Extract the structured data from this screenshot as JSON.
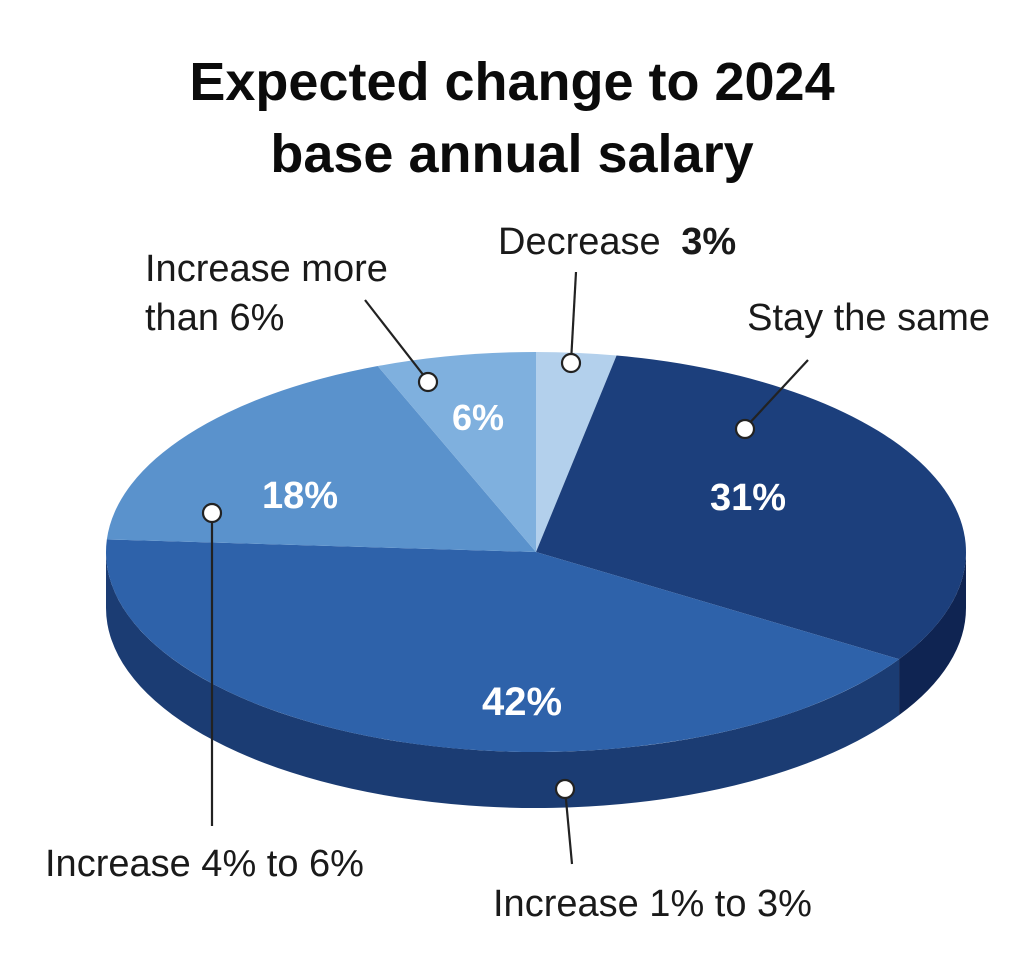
{
  "chart_data": {
    "type": "pie",
    "title_lines": [
      "Expected change to 2024",
      "base annual salary"
    ],
    "slices": [
      {
        "label": "Decrease",
        "value": 3,
        "display": "3%",
        "color": "#b3d0ec",
        "side": "#8fb3d9"
      },
      {
        "label": "Stay the same",
        "value": 31,
        "display": "31%",
        "color": "#1c3f7c",
        "side": "#0f2452"
      },
      {
        "label": "Increase 1% to 3%",
        "value": 42,
        "display": "42%",
        "color": "#2e62aa",
        "side": "#1b3c73"
      },
      {
        "label": "Increase 4% to 6%",
        "value": 18,
        "display": "18%",
        "color": "#5a92cc",
        "side": "#3f6fa6"
      },
      {
        "label_lines": [
          "Increase more",
          "than 6%"
        ],
        "value": 6,
        "display": "6%",
        "color": "#7fb0de",
        "side": "#5c8ec2"
      }
    ]
  }
}
